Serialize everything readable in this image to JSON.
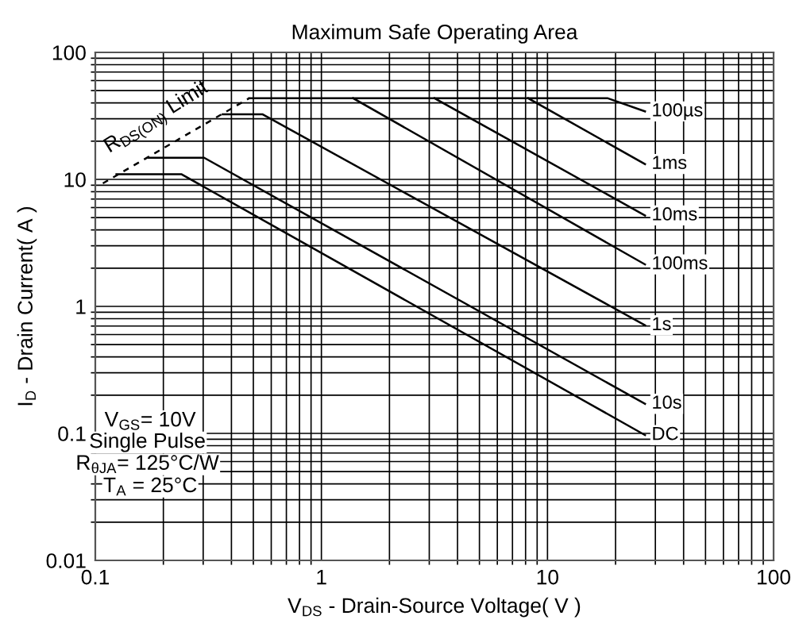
{
  "chart_data": {
    "type": "line",
    "title": "Maximum Safe Operating Area",
    "xlabel": "V$_{DS}$ - Drain-Source Voltage( V )",
    "ylabel": "I$_{D}$ - Drain Current( A )",
    "log": "xy",
    "xlim": [
      0.1,
      100
    ],
    "ylim": [
      0.01,
      100
    ],
    "xticks": [
      0.1,
      1,
      10,
      100
    ],
    "yticks": [
      0.01,
      0.1,
      1,
      10,
      100
    ],
    "grid": true,
    "series": [
      {
        "name": "100µs",
        "color": "#000000",
        "x": [
          0.48,
          18.4,
          27
        ],
        "values": [
          43.6,
          43.6,
          34.3
        ]
      },
      {
        "name": "1ms",
        "color": "#000000",
        "x": [
          8.2,
          27
        ],
        "values": [
          43.6,
          13.2
        ]
      },
      {
        "name": "10ms",
        "color": "#000000",
        "x": [
          3.16,
          27
        ],
        "values": [
          43.6,
          5.2
        ]
      },
      {
        "name": "100ms",
        "color": "#000000",
        "x": [
          1.38,
          27
        ],
        "values": [
          43.6,
          2.14
        ]
      },
      {
        "name": "1s",
        "color": "#000000",
        "x": [
          0.366,
          0.548,
          27
        ],
        "values": [
          32.6,
          32.6,
          0.71
        ]
      },
      {
        "name": "10s",
        "color": "#000000",
        "x": [
          0.172,
          0.303,
          27
        ],
        "values": [
          14.8,
          14.8,
          0.171
        ]
      },
      {
        "name": "DC",
        "color": "#000000",
        "x": [
          0.124,
          0.24,
          27
        ],
        "values": [
          11,
          11,
          0.097
        ]
      },
      {
        "name": "R$_{DS(ON)}$ Limit",
        "color": "#000000",
        "line_style": "dashed",
        "x": [
          0.108,
          0.48
        ],
        "values": [
          9.3,
          43.6
        ]
      }
    ],
    "annotations": [
      "V$_{GS}$= 10V",
      "Single Pulse",
      "R$_{θJA}$= 125°C/W",
      "T$_{A}$ = 25°C"
    ]
  }
}
